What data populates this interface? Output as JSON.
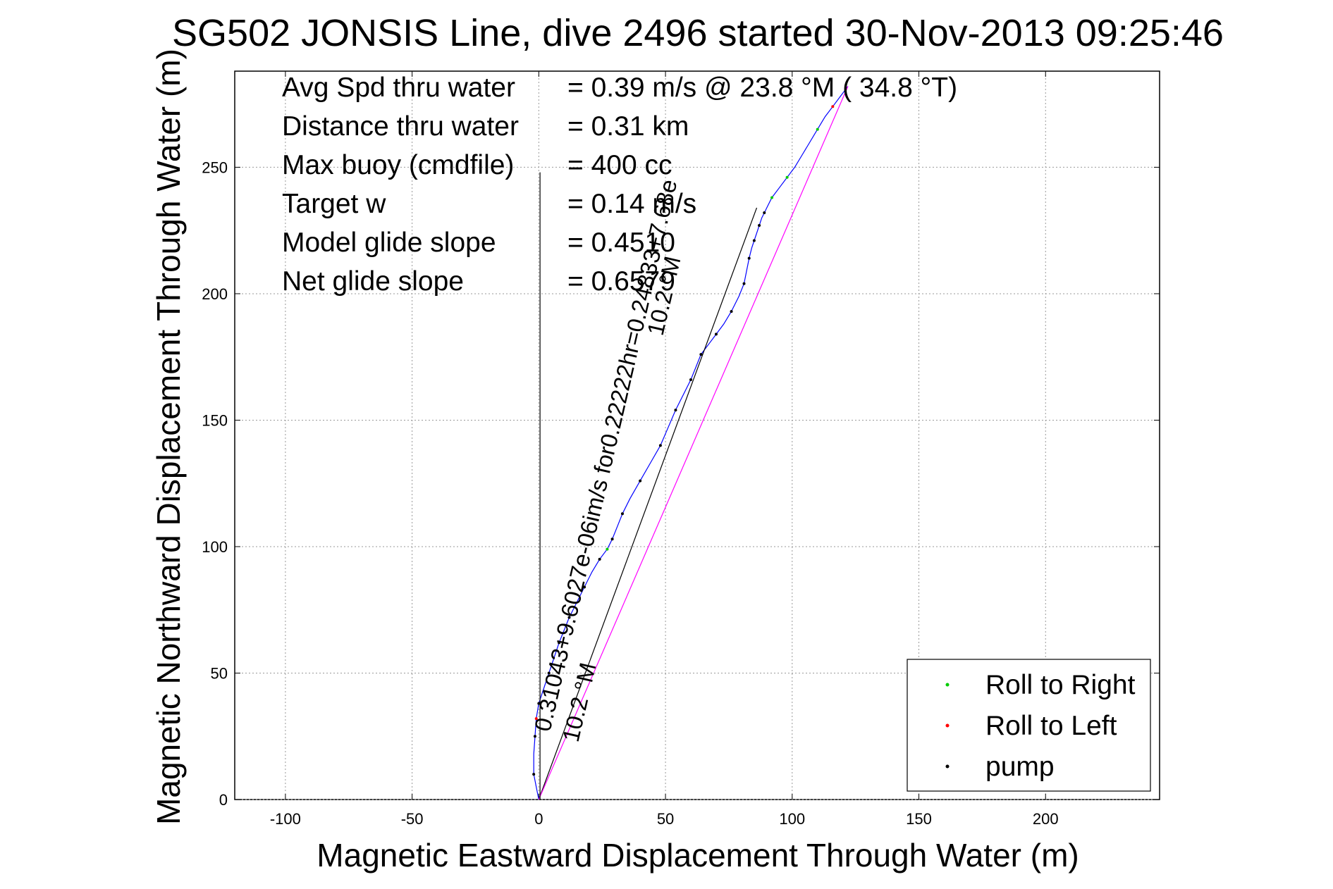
{
  "chart_data": {
    "type": "line",
    "title": "SG502 JONSIS Line, dive 2496 started 30-Nov-2013 09:25:46",
    "xlabel": "Magnetic Eastward Displacement Through Water (m)",
    "ylabel": "Magnetic Northward Displacement Through Water (m)",
    "xlim": [
      -120,
      245
    ],
    "ylim": [
      0,
      288
    ],
    "xticks": [
      -100,
      -50,
      0,
      50,
      100,
      150,
      200
    ],
    "xtick_labels": [
      "-100",
      "-50",
      "0",
      "50",
      "100",
      "150",
      "200"
    ],
    "yticks": [
      0,
      50,
      100,
      150,
      200,
      250
    ],
    "ytick_labels": [
      "0",
      "50",
      "100",
      "150",
      "200",
      "250"
    ],
    "grid": true,
    "legend_position": "bottom-right",
    "stats": [
      {
        "label": "Avg Spd thru water",
        "value": "=  0.39 m/s @  23.8 °M ( 34.8 °T)"
      },
      {
        "label": "Distance thru water",
        "value": "=  0.31 km"
      },
      {
        "label": "Max buoy (cmdfile)",
        "value": "= 400 cc"
      },
      {
        "label": "Target w",
        "value": "= 0.14 m/s"
      },
      {
        "label": "Model glide slope",
        "value": "= 0.4510"
      },
      {
        "label": "Net glide slope",
        "value": "= 0.6579"
      }
    ],
    "annotations": [
      "0.31043+9.6027e-06im/s for0.22222hr=0.24833+7.68e",
      "10.2 °M",
      "10.2 °M"
    ],
    "series": [
      {
        "name": "track",
        "color": "#0000ff",
        "x": [
          0,
          -1,
          -2,
          -2,
          -1.5,
          -1,
          0,
          2,
          4,
          6,
          8,
          10,
          12,
          15,
          18,
          21,
          24,
          27,
          29,
          31,
          33,
          36,
          40,
          44,
          48,
          51,
          54,
          57,
          60,
          62,
          64,
          67,
          70,
          73,
          76,
          79,
          81,
          82,
          83,
          84,
          85,
          86,
          87,
          88,
          89,
          90,
          92,
          95,
          98,
          101,
          104,
          107,
          110,
          113,
          116,
          119,
          122
        ],
        "y": [
          0,
          5,
          10,
          18,
          25,
          32,
          38,
          44,
          50,
          56,
          62,
          67,
          72,
          78,
          84,
          90,
          95,
          99,
          103,
          108,
          113,
          119,
          126,
          133,
          140,
          147,
          154,
          160,
          166,
          171,
          176,
          180,
          184,
          188,
          193,
          199,
          204,
          209,
          214,
          218,
          221,
          224,
          227,
          230,
          232,
          234,
          238,
          242,
          246,
          250,
          255,
          260,
          265,
          270,
          274,
          278,
          282
        ],
        "markers": {
          "pump_indices": [
            2,
            4,
            6,
            8,
            10,
            12,
            14,
            16,
            18,
            20,
            22,
            24,
            26,
            28,
            30,
            32,
            34,
            36,
            38,
            40,
            42,
            44
          ],
          "roll_right_indices": [
            17,
            46,
            48,
            52
          ],
          "roll_left_indices": [
            5,
            54
          ]
        }
      },
      {
        "name": "heading line",
        "color": "#000000",
        "x": [
          0,
          86
        ],
        "y": [
          0,
          234
        ]
      },
      {
        "name": "current fit",
        "color": "#ff00ff",
        "x": [
          0,
          122
        ],
        "y": [
          0,
          282
        ]
      },
      {
        "name": "vertical reference",
        "color": "#000000",
        "x": [
          0.5,
          0.5
        ],
        "y": [
          0,
          248
        ]
      }
    ],
    "legend": [
      {
        "label": "Roll to Right",
        "color": "#00cc00"
      },
      {
        "label": "Roll to Left",
        "color": "#ff0000"
      },
      {
        "label": "pump",
        "color": "#000000"
      }
    ]
  }
}
